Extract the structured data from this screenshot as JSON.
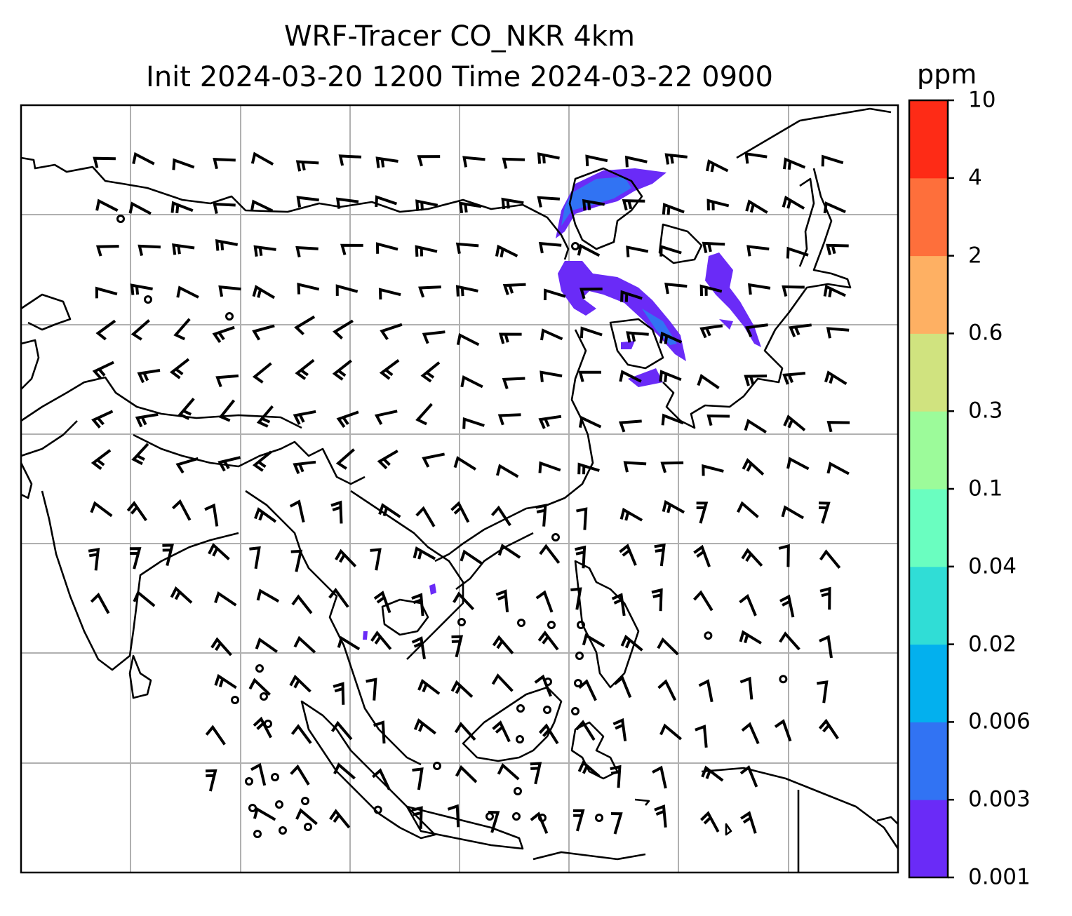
{
  "title": {
    "line1": "WRF-Tracer CO_NKR 4km",
    "line2": "Init 2024-03-20 1200 Time 2024-03-22 0900"
  },
  "colorbar": {
    "label": "ppm",
    "ticks": [
      "0.001",
      "0.003",
      "0.006",
      "0.02",
      "0.04",
      "0.1",
      "0.3",
      "0.6",
      "2",
      "4",
      "10"
    ],
    "colors": [
      "#6a2bf7",
      "#3173f3",
      "#03b0ee",
      "#30ddd6",
      "#6afec0",
      "#9cfb9a",
      "#d0e37f",
      "#feb063",
      "#fe6f3b",
      "#fe2b16"
    ]
  },
  "colors": {
    "coastline": "#000000",
    "gridline": "#b0b0b0",
    "tracer_low": "#6a2bf7",
    "tracer_mid": "#3173f3"
  }
}
